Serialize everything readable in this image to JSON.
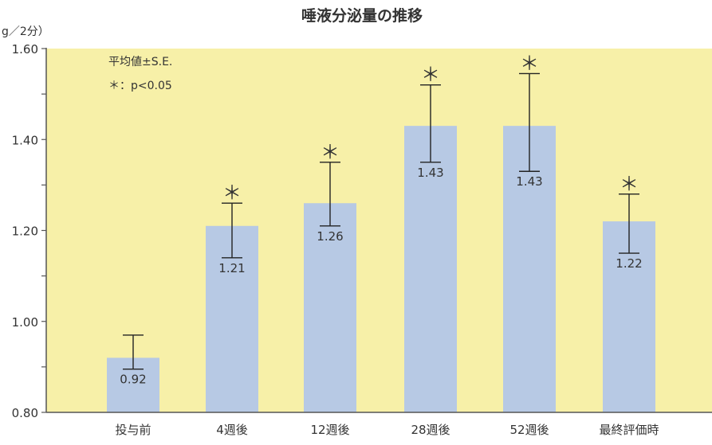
{
  "chart_data": {
    "type": "bar",
    "title": "唾液分泌量の推移",
    "ylabel": "g／2分）",
    "xlabel": "",
    "ylim": [
      0.8,
      1.6
    ],
    "y_ticks": [
      0.8,
      1.0,
      1.2,
      1.4,
      1.6
    ],
    "y_tick_labels": [
      "0.80",
      "1.00",
      "1.20",
      "1.40",
      "1.60"
    ],
    "categories": [
      "投与前",
      "4週後",
      "12週後",
      "28週後",
      "52週後",
      "最終評価時"
    ],
    "values": [
      0.92,
      1.21,
      1.26,
      1.43,
      1.43,
      1.22
    ],
    "value_labels": [
      "0.92",
      "1.21",
      "1.26",
      "1.43",
      "1.43",
      "1.22"
    ],
    "error_upper": [
      0.97,
      1.26,
      1.35,
      1.52,
      1.545,
      1.28
    ],
    "error_lower": [
      0.895,
      1.14,
      1.21,
      1.35,
      1.33,
      1.15
    ],
    "significant": [
      false,
      true,
      true,
      true,
      true,
      true
    ],
    "significance_mark": "＊",
    "legend": {
      "line1": "平均値±S.E.",
      "line2": "＊：p<0.05"
    },
    "colors": {
      "background": "#f7f0a8",
      "bar": "#b7c9e4",
      "axis": "#555555",
      "text": "#333333"
    }
  }
}
